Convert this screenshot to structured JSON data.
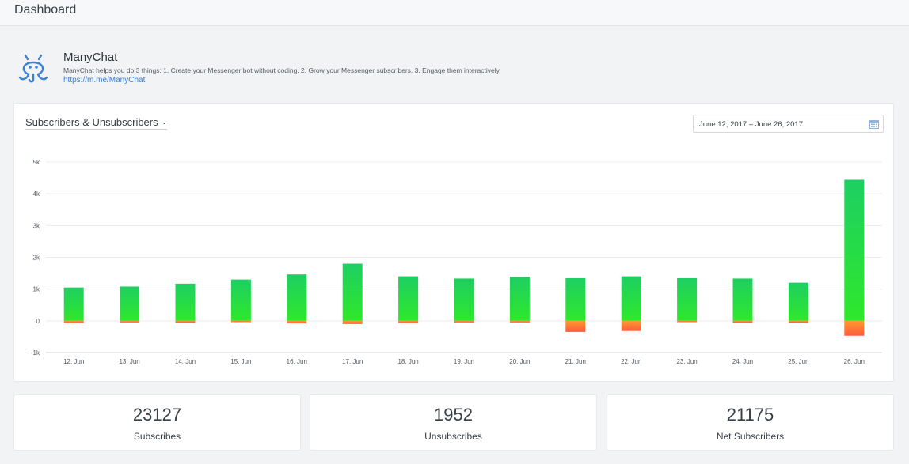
{
  "header": {
    "title": "Dashboard"
  },
  "bot": {
    "name": "ManyChat",
    "description": "ManyChat helps you do 3 things: 1. Create your Messenger bot without coding. 2. Grow your Messenger subscribers. 3. Engage them interactively.",
    "link": "https://m.me/ManyChat",
    "logo_icon": "octopus-logo-icon"
  },
  "chart_panel": {
    "metric_selector": "Subscribers & Unsubscribers",
    "date_range": "June 12, 2017 – June 26, 2017",
    "calendar_icon": "calendar-icon"
  },
  "chart_data": {
    "type": "bar",
    "categories": [
      "12. Jun",
      "13. Jun",
      "14. Jun",
      "15. Jun",
      "16. Jun",
      "17. Jun",
      "18. Jun",
      "19. Jun",
      "20. Jun",
      "21. Jun",
      "22. Jun",
      "23. Jun",
      "24. Jun",
      "25. Jun",
      "26. Jun"
    ],
    "series": [
      {
        "values": [
          1050,
          1080,
          1170,
          1300,
          1460,
          1800,
          1400,
          1330,
          1380,
          1340,
          1400,
          1340,
          1330,
          1200,
          4440
        ],
        "color": "#22d45a"
      },
      {
        "values": [
          -70,
          -50,
          -60,
          -40,
          -80,
          -100,
          -70,
          -50,
          -50,
          -350,
          -320,
          -40,
          -60,
          -60,
          -470
        ],
        "color": "#ff6b3d"
      }
    ],
    "ylim": [
      -1000,
      5000
    ],
    "yticks": [
      "-1k",
      "0",
      "1k",
      "2k",
      "3k",
      "4k",
      "5k"
    ],
    "ytick_values": [
      -1000,
      0,
      1000,
      2000,
      3000,
      4000,
      5000
    ],
    "stacked": true,
    "grid": true,
    "legend": "none"
  },
  "stats": [
    {
      "value": "23127",
      "label": "Subscribes"
    },
    {
      "value": "1952",
      "label": "Unsubscribes"
    },
    {
      "value": "21175",
      "label": "Net Subscribers"
    }
  ]
}
